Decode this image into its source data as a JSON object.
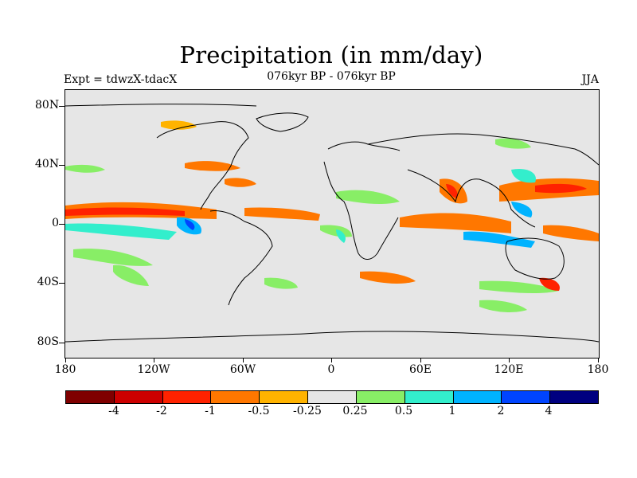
{
  "title": "Precipitation (in mm/day)",
  "subtitle_left": "Expt = tdwzX-tdacX",
  "subtitle_center": "076kyr BP - 076kyr BP",
  "subtitle_right": "JJA",
  "y_axis_labels": [
    "80N",
    "40N",
    "0",
    "40S",
    "80S"
  ],
  "x_axis_labels": [
    "180",
    "120W",
    "60W",
    "0",
    "60E",
    "120E",
    "180"
  ],
  "colors": {
    "background": "#e6e6e6",
    "ocean_land_lines": "#000000",
    "palette": [
      "#7f0000",
      "#cc0000",
      "#ff2200",
      "#ff7700",
      "#ffb300",
      "#e6e6e6",
      "#88ee66",
      "#33eecc",
      "#00b3ff",
      "#0044ff",
      "#000080"
    ]
  },
  "colorbar_labels": [
    "-4",
    "-2",
    "-1",
    "-0.5",
    "-0.25",
    "0.25",
    "0.5",
    "1",
    "2",
    "4"
  ]
}
